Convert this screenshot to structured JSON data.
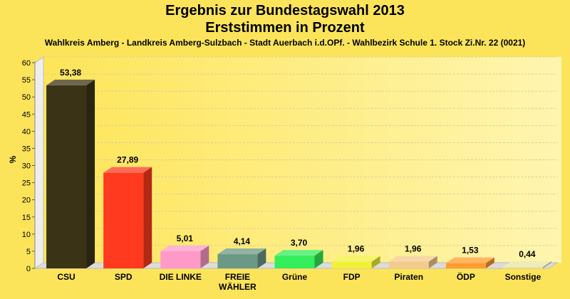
{
  "chart_data": {
    "type": "bar",
    "title": "Ergebnis zur Bundestagswahl 2013",
    "title_line2": "Erststimmen in Prozent",
    "subtitle": "Wahlkreis Amberg - Landkreis Amberg-Sulzbach - Stadt Auerbach i.d.OPf. - Wahlbezirk Schule 1. Stock Zi.Nr. 22 (0021)",
    "ylabel": "%",
    "ylim": [
      0,
      60
    ],
    "yticks": [
      "0",
      "5",
      "10",
      "15",
      "20",
      "25",
      "30",
      "35",
      "40",
      "45",
      "50",
      "55",
      "60"
    ],
    "grid": true,
    "categories": [
      "CSU",
      "SPD",
      "DIE LINKE",
      "FREIE\nWÄHLER",
      "Grüne",
      "FDP",
      "Piraten",
      "ÖDP",
      "Sonstige"
    ],
    "values": [
      53.38,
      27.89,
      5.01,
      4.14,
      3.7,
      1.96,
      1.96,
      1.53,
      0.44
    ],
    "value_labels": [
      "53,38",
      "27,89",
      "5,01",
      "4,14",
      "3,70",
      "1,96",
      "1,96",
      "1,53",
      "0,44"
    ],
    "colors": [
      "#3b3315",
      "#ff3a1e",
      "#ff99c8",
      "#6b9986",
      "#33ee5a",
      "#f1f13a",
      "#f3cb8c",
      "#ff9c2c",
      "#e8e6a0"
    ]
  }
}
